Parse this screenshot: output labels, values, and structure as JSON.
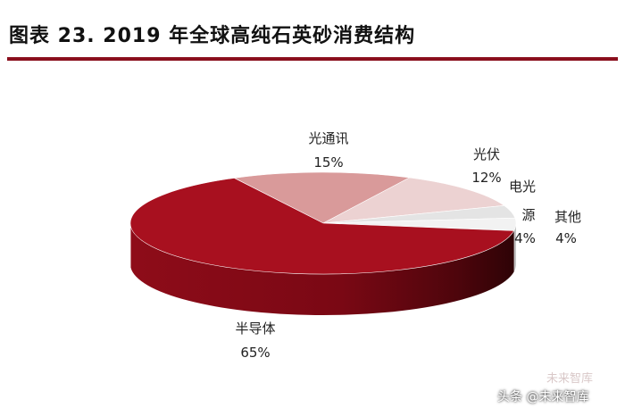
{
  "header": {
    "title": "图表 23. 2019 年全球高纯石英砂消费结构"
  },
  "chart_data": {
    "type": "pie",
    "title": "图表 23. 2019 年全球高纯石英砂消费结构",
    "unit": "%",
    "slices": [
      {
        "name": "半导体",
        "value": 65,
        "label_value": "65%",
        "color": "#a8101f"
      },
      {
        "name": "光通讯",
        "value": 15,
        "label_value": "15%",
        "color": "#d99a9a"
      },
      {
        "name": "光伏",
        "value": 12,
        "label_value": "12%",
        "color": "#ecd2d2"
      },
      {
        "name": "电光源",
        "value": 4,
        "label_value": "4%",
        "color": "#e4e4e4"
      },
      {
        "name": "其他",
        "value": 4,
        "label_value": "4%",
        "color": "#f2f2f2"
      }
    ],
    "legend": "none"
  },
  "watermark": {
    "text": "头条 @未来智库",
    "logo_text": "未来智库"
  }
}
